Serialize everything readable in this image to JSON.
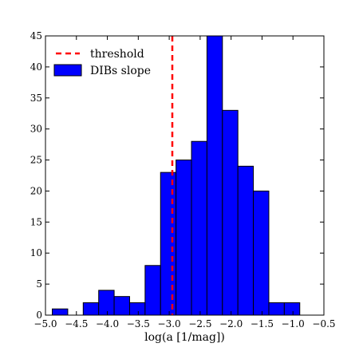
{
  "chart_data": {
    "type": "bar",
    "xlabel": "log(a [1/mag])",
    "ylabel": "",
    "xlim": [
      -5.0,
      -0.5
    ],
    "ylim": [
      0,
      45
    ],
    "xticks": [
      -5.0,
      -4.5,
      -4.0,
      -3.5,
      -3.0,
      -2.5,
      -2.0,
      -1.5,
      -1.0,
      -0.5
    ],
    "xtick_labels": [
      "−5.0",
      "−4.5",
      "−4.0",
      "−3.5",
      "−3.0",
      "−2.5",
      "−2.0",
      "−1.5",
      "−1.0",
      "−0.5"
    ],
    "yticks": [
      0,
      5,
      10,
      15,
      20,
      25,
      30,
      35,
      40,
      45
    ],
    "ytick_labels": [
      "0",
      "5",
      "10",
      "15",
      "20",
      "25",
      "30",
      "35",
      "40",
      "45"
    ],
    "grid": false,
    "legend_position": "top-left",
    "bins": [
      {
        "x0": -4.89,
        "x1": -4.64,
        "count": 1
      },
      {
        "x0": -4.64,
        "x1": -4.39,
        "count": 0
      },
      {
        "x0": -4.39,
        "x1": -4.14,
        "count": 2
      },
      {
        "x0": -4.14,
        "x1": -3.89,
        "count": 4
      },
      {
        "x0": -3.89,
        "x1": -3.64,
        "count": 3
      },
      {
        "x0": -3.64,
        "x1": -3.39,
        "count": 2
      },
      {
        "x0": -3.39,
        "x1": -3.14,
        "count": 8
      },
      {
        "x0": -3.14,
        "x1": -2.89,
        "count": 23
      },
      {
        "x0": -2.89,
        "x1": -2.64,
        "count": 25
      },
      {
        "x0": -2.64,
        "x1": -2.39,
        "count": 28
      },
      {
        "x0": -2.39,
        "x1": -2.14,
        "count": 45
      },
      {
        "x0": -2.14,
        "x1": -1.89,
        "count": 33
      },
      {
        "x0": -1.89,
        "x1": -1.64,
        "count": 24
      },
      {
        "x0": -1.64,
        "x1": -1.39,
        "count": 20
      },
      {
        "x0": -1.39,
        "x1": -1.14,
        "count": 2
      },
      {
        "x0": -1.14,
        "x1": -0.89,
        "count": 2
      }
    ],
    "threshold": {
      "x": -2.95,
      "name": "threshold",
      "color": "#ff0000"
    },
    "series": [
      {
        "name": "DIBs slope",
        "color": "#0000ff"
      }
    ]
  }
}
